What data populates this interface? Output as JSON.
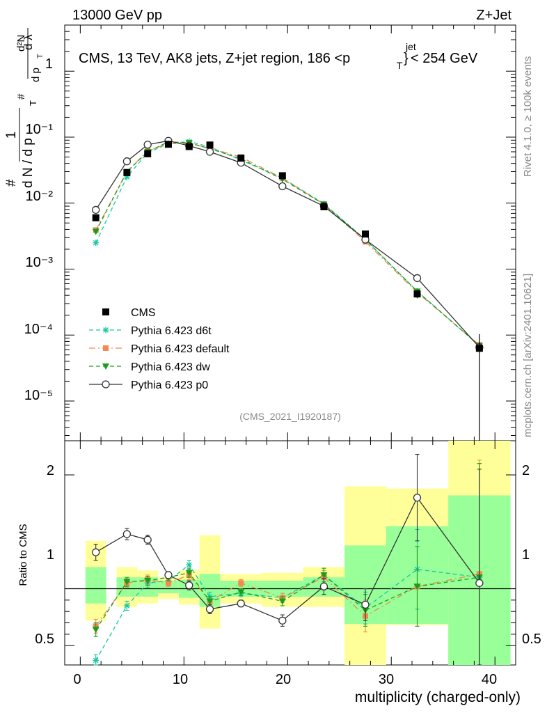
{
  "header": {
    "left": "13000 GeV pp",
    "right": "Z+Jet"
  },
  "chart_data": {
    "type": "line",
    "title": "CMS, 13 TeV, AK8 jets, Z+jet region, 186 <p_T^{jet}< 254 GeV",
    "title_parts": {
      "main": "CMS, 13 TeV, AK8 jets, Z+jet region, 186 <p",
      "sub": "T",
      "sup": "jet",
      "close": "}",
      "end": "< 254 GeV"
    },
    "xlabel": "multiplicity (charged-only)",
    "ylabel": {
      "one": "1",
      "hash": "#",
      "dn": "d N / d p",
      "pt_sub": "T",
      "frac_num": "d²N",
      "frac_den": "d p",
      "frac_den_sub": "T",
      "dlam": "d λ"
    },
    "ratio_ylabel": "Ratio to CMS",
    "xlim": [
      -1.5,
      42
    ],
    "ylim_log": [
      2.5e-06,
      5
    ],
    "ratio_ylim": [
      0.33,
      2.3
    ],
    "x_ticks": [
      "0",
      "10",
      "20",
      "30",
      "40"
    ],
    "y_ticks": [
      "1",
      "10⁻¹",
      "10⁻²",
      "10⁻³",
      "10⁻⁴",
      "10⁻⁵"
    ],
    "ratio_ticks": [
      "2",
      "1",
      "0.5"
    ],
    "analysis_id": "(CMS_2021_I1920187)",
    "side_label_top": "Rivet 4.1.0, ≥ 100k events",
    "side_label_bottom": "mcplots.cern.ch [arXiv:2401.10621]",
    "bins": [
      [
        0.5,
        2.5
      ],
      [
        3.5,
        5.5
      ],
      [
        5.5,
        7.5
      ],
      [
        7.5,
        9.5
      ],
      [
        9.5,
        11.5
      ],
      [
        11.5,
        13.5
      ],
      [
        13.5,
        17.5
      ],
      [
        17.5,
        21.5
      ],
      [
        21.5,
        25.5
      ],
      [
        25.5,
        29.5
      ],
      [
        29.5,
        35.5
      ],
      [
        35.5,
        41.5
      ]
    ],
    "x": [
      1.5,
      4.5,
      6.5,
      8.5,
      10.5,
      12.5,
      15.5,
      19.5,
      23.5,
      27.5,
      32.5,
      38.5
    ],
    "band_green": [
      [
        0.87,
        1.19
      ],
      [
        0.93,
        1.1
      ],
      [
        0.93,
        1.1
      ],
      [
        0.96,
        1.07
      ],
      [
        0.92,
        1.08
      ],
      [
        0.84,
        1.13
      ],
      [
        0.93,
        1.07
      ],
      [
        0.93,
        1.07
      ],
      [
        0.93,
        1.1
      ],
      [
        0.69,
        1.38
      ],
      [
        0.69,
        1.55
      ],
      [
        0.28,
        1.82
      ]
    ],
    "band_yellow": [
      [
        0.72,
        1.42
      ],
      [
        0.84,
        1.19
      ],
      [
        0.87,
        1.16
      ],
      [
        0.91,
        1.1
      ],
      [
        0.86,
        1.16
      ],
      [
        0.65,
        1.47
      ],
      [
        0.87,
        1.13
      ],
      [
        0.84,
        1.14
      ],
      [
        0.84,
        1.19
      ],
      [
        0.28,
        1.9
      ],
      [
        0.68,
        1.88
      ],
      [
        0.28,
        2.3
      ]
    ],
    "series": [
      {
        "name": "CMS",
        "style": "data",
        "color": "#000000",
        "values": [
          0.006,
          0.029,
          0.056,
          0.078,
          0.072,
          0.076,
          0.048,
          0.026,
          0.0088,
          0.0034,
          0.00042,
          6.3e-05
        ],
        "errors": [
          0.00025,
          0.0008,
          0.0015,
          0.002,
          0.002,
          0.002,
          0.0012,
          0.0007,
          0.00035,
          0.00025,
          6e-05,
          4e-05
        ]
      },
      {
        "name": "Pythia 6.423 d6t",
        "style": "star",
        "color": "#17c7a0",
        "dash": "6,4",
        "values": [
          0.0025,
          0.025,
          0.058,
          0.08,
          0.086,
          0.071,
          0.045,
          0.024,
          0.0098,
          0.0028,
          0.00046,
          6.9e-05
        ],
        "ratio": [
          0.37,
          0.85,
          1.05,
          1.07,
          1.21,
          0.93,
          0.96,
          0.92,
          1.12,
          0.83,
          1.17,
          1.1
        ],
        "ratio_err": [
          0.05,
          0.04,
          0.04,
          0.03,
          0.04,
          0.04,
          0.03,
          0.04,
          0.06,
          0.14,
          0.35,
          1.0
        ]
      },
      {
        "name": "Pythia 6.423 default",
        "style": "square",
        "color": "#f5874f",
        "dash": "9,4,2,4",
        "values": [
          0.0039,
          0.03,
          0.062,
          0.08,
          0.08,
          0.068,
          0.05,
          0.024,
          0.0096,
          0.0026,
          0.00044,
          7.1e-05
        ],
        "ratio": [
          0.67,
          1.05,
          1.08,
          1.05,
          1.12,
          0.89,
          1.05,
          0.92,
          1.1,
          0.76,
          1.02,
          1.13
        ],
        "ratio_err": [
          0.06,
          0.04,
          0.04,
          0.03,
          0.04,
          0.04,
          0.03,
          0.04,
          0.06,
          0.14,
          0.35,
          1.0
        ]
      },
      {
        "name": "Pythia 6.423 dw",
        "style": "tri",
        "color": "#1a9e1a",
        "dash": "6,4",
        "values": [
          0.0037,
          0.03,
          0.06,
          0.085,
          0.082,
          0.067,
          0.047,
          0.023,
          0.0096,
          0.0028,
          0.00046,
          6.9e-05
        ],
        "ratio": [
          0.64,
          1.06,
          1.07,
          1.1,
          1.14,
          0.89,
          0.97,
          0.89,
          1.12,
          0.81,
          1.02,
          1.1
        ],
        "ratio_err": [
          0.06,
          0.04,
          0.04,
          0.03,
          0.04,
          0.04,
          0.03,
          0.04,
          0.06,
          0.14,
          0.35,
          1.0
        ]
      },
      {
        "name": "Pythia 6.423 p0",
        "style": "circle",
        "color": "#333333",
        "dash": "",
        "values": [
          0.0079,
          0.043,
          0.077,
          0.088,
          0.074,
          0.06,
          0.041,
          0.018,
          0.009,
          0.0028,
          0.00073,
          6.5e-05
        ],
        "ratio": [
          1.32,
          1.48,
          1.43,
          1.12,
          1.03,
          0.82,
          0.87,
          0.72,
          1.02,
          0.86,
          1.8,
          1.05
        ],
        "ratio_err": [
          0.07,
          0.05,
          0.04,
          0.03,
          0.04,
          0.04,
          0.03,
          0.05,
          0.07,
          0.14,
          0.38,
          1.0
        ]
      }
    ]
  }
}
